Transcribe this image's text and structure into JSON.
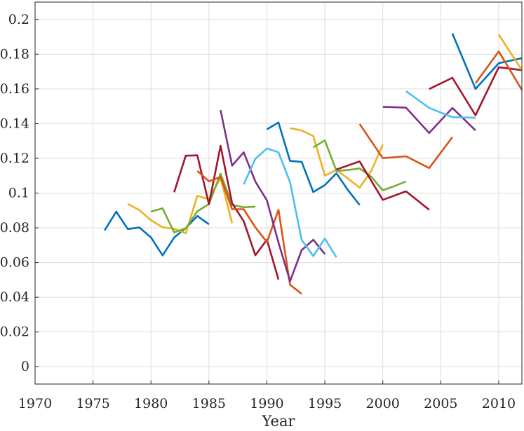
{
  "chart_data": {
    "type": "line",
    "xlabel": "Year",
    "ylabel": "",
    "xlim": [
      1970,
      2012
    ],
    "ylim": [
      -0.01,
      0.21
    ],
    "xticks": [
      1970,
      1975,
      1980,
      1985,
      1990,
      1995,
      2000,
      2005,
      2010
    ],
    "yticks": [
      0,
      0.02,
      0.04,
      0.06,
      0.08,
      0.1,
      0.12,
      0.14,
      0.16,
      0.18,
      0.2
    ],
    "xtick_labels": [
      "1970",
      "1975",
      "1980",
      "1985",
      "1990",
      "1995",
      "2000",
      "2005",
      "2010"
    ],
    "ytick_labels": [
      "0",
      "0.02",
      "0.04",
      "0.06",
      "0.08",
      "0.1",
      "0.12",
      "0.14",
      "0.16",
      "0.18",
      "0.2"
    ],
    "grid": true,
    "series": [
      {
        "color": "#0072BD",
        "x": [
          1976,
          1977,
          1978,
          1979,
          1980,
          1981,
          1982,
          1983,
          1984,
          1985
        ],
        "y": [
          0.0785,
          0.0893,
          0.0793,
          0.0802,
          0.0745,
          0.0641,
          0.0744,
          0.0798,
          0.0868,
          0.082
        ]
      },
      {
        "color": "#EDB120",
        "x": [
          1978,
          1979,
          1980,
          1981,
          1982,
          1983,
          1984,
          1985,
          1986,
          1987
        ],
        "y": [
          0.0938,
          0.0902,
          0.0844,
          0.0803,
          0.0794,
          0.0768,
          0.0984,
          0.0965,
          0.1088,
          0.0826
        ]
      },
      {
        "color": "#77AC30",
        "x": [
          1980,
          1981,
          1982,
          1983,
          1984,
          1985,
          1986,
          1987,
          1988,
          1989
        ],
        "y": [
          0.0893,
          0.0912,
          0.0773,
          0.0797,
          0.0895,
          0.0937,
          0.1112,
          0.0932,
          0.0918,
          0.0922
        ]
      },
      {
        "color": "#A2142F",
        "x": [
          1982,
          1983,
          1984,
          1985,
          1986,
          1987,
          1988,
          1989,
          1990,
          1991
        ],
        "y": [
          0.1005,
          0.1215,
          0.1217,
          0.0936,
          0.1272,
          0.0941,
          0.0838,
          0.0642,
          0.0731,
          0.0502
        ]
      },
      {
        "color": "#D95319",
        "x": [
          1984,
          1985,
          1986,
          1987,
          1988,
          1989,
          1990,
          1991,
          1992,
          1993
        ],
        "y": [
          0.1128,
          0.1068,
          0.1092,
          0.0907,
          0.0907,
          0.0803,
          0.0718,
          0.0904,
          0.0472,
          0.0419
        ]
      },
      {
        "color": "#7E2F8E",
        "x": [
          1986,
          1987,
          1988,
          1989,
          1990,
          1991,
          1992,
          1993,
          1994,
          1995
        ],
        "y": [
          0.1478,
          0.1158,
          0.1235,
          0.1067,
          0.0958,
          0.0715,
          0.0492,
          0.0671,
          0.0731,
          0.0649
        ]
      },
      {
        "color": "#4DBEEE",
        "x": [
          1988,
          1989,
          1990,
          1991,
          1992,
          1993,
          1994,
          1995,
          1996
        ],
        "y": [
          0.105,
          0.1197,
          0.1257,
          0.1235,
          0.1062,
          0.0731,
          0.0637,
          0.0738,
          0.063
        ]
      },
      {
        "color": "#0072BD",
        "x": [
          1990,
          1991,
          1992,
          1993,
          1994,
          1995,
          1996,
          1997,
          1998
        ],
        "y": [
          0.1367,
          0.1407,
          0.1185,
          0.118,
          0.1006,
          0.1046,
          0.1114,
          0.1017,
          0.0931
        ]
      },
      {
        "color": "#EDB120",
        "x": [
          1992,
          1993,
          1994,
          1995,
          1996,
          1997,
          1998,
          1999,
          2000
        ],
        "y": [
          0.1374,
          0.1361,
          0.1328,
          0.1101,
          0.1133,
          0.1084,
          0.1031,
          0.1127,
          0.1279
        ]
      },
      {
        "color": "#77AC30",
        "x": [
          1994,
          1995,
          1996,
          1997,
          1998,
          1999,
          2000,
          2001,
          2002
        ],
        "y": [
          0.1263,
          0.1303,
          0.1128,
          0.1133,
          0.1142,
          0.1094,
          0.1016,
          0.104,
          0.1067
        ]
      },
      {
        "color": "#A2142F",
        "x": [
          1996,
          1998,
          2000,
          2002,
          2004
        ],
        "y": [
          0.1136,
          0.1182,
          0.0961,
          0.101,
          0.0904
        ]
      },
      {
        "color": "#D95319",
        "x": [
          1998,
          2000,
          2002,
          2004,
          2006
        ],
        "y": [
          0.1398,
          0.1201,
          0.1212,
          0.1144,
          0.1322
        ]
      },
      {
        "color": "#7E2F8E",
        "x": [
          2000,
          2002,
          2004,
          2006,
          2008
        ],
        "y": [
          0.1497,
          0.1492,
          0.1346,
          0.149,
          0.1361
        ]
      },
      {
        "color": "#4DBEEE",
        "x": [
          2002,
          2004,
          2006,
          2008
        ],
        "y": [
          0.1587,
          0.1491,
          0.1437,
          0.1434
        ]
      },
      {
        "color": "#A2142F",
        "x": [
          2004,
          2006,
          2008,
          2010,
          2012
        ],
        "y": [
          0.1599,
          0.1664,
          0.1448,
          0.1725,
          0.1708
        ]
      },
      {
        "color": "#0072BD",
        "x": [
          2006,
          2008,
          2010,
          2012
        ],
        "y": [
          0.1919,
          0.16,
          0.1748,
          0.1777
        ]
      },
      {
        "color": "#EDB120",
        "x": [
          2010,
          2012
        ],
        "y": [
          0.1913,
          0.1708
        ]
      },
      {
        "color": "#D95319",
        "x": [
          2008,
          2010,
          2012
        ],
        "y": [
          0.1632,
          0.1816,
          0.1594
        ]
      }
    ]
  }
}
